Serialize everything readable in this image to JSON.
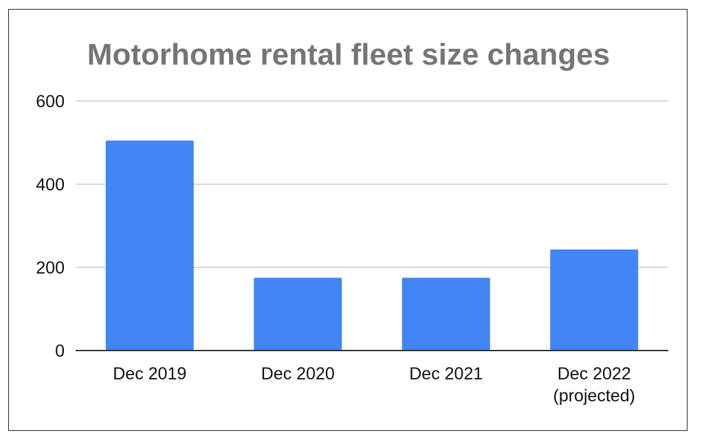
{
  "chart_data": {
    "type": "bar",
    "title": "Motorhome rental fleet size changes",
    "categories": [
      [
        "Dec 2019"
      ],
      [
        "Dec 2020"
      ],
      [
        "Dec 2021"
      ],
      [
        "Dec 2022",
        "(projected)"
      ]
    ],
    "values": [
      505,
      175,
      175,
      243
    ],
    "ylim": [
      0,
      600
    ],
    "yticks": [
      "0",
      "200",
      "400",
      "600"
    ],
    "grid": true,
    "legend": "none",
    "bar_color": "#4285f4",
    "title_color": "#757575",
    "grid_color": "#cccccc",
    "axis_color": "#333333"
  }
}
